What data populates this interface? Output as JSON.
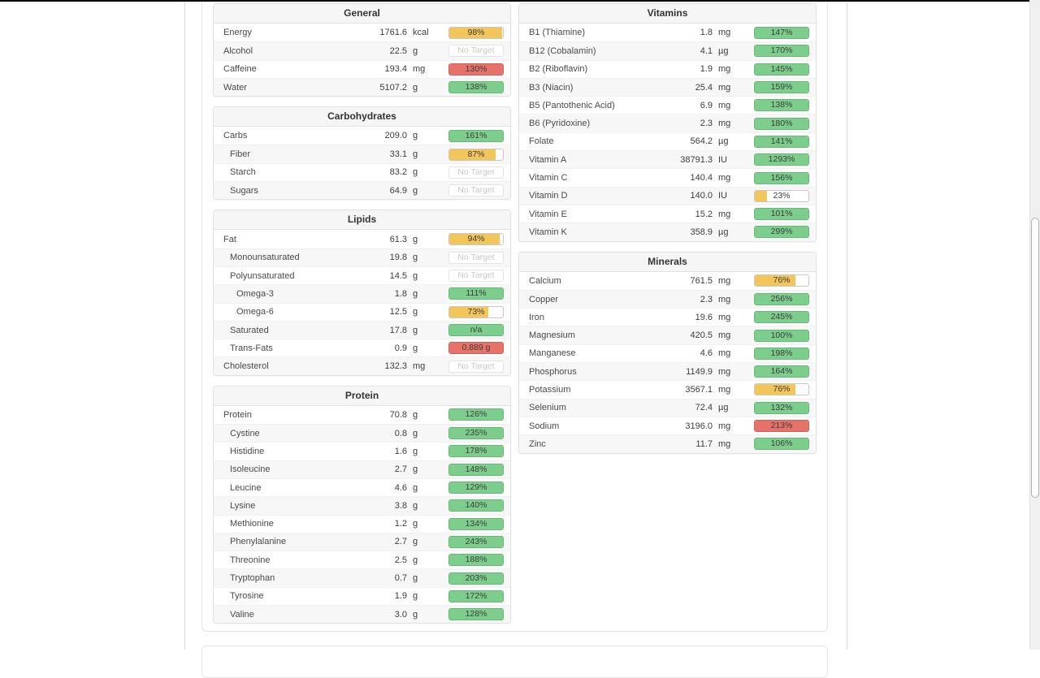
{
  "colors": {
    "green": "#7dcd8c",
    "yellow": "#f3c65b",
    "red": "#e57369",
    "no_target_text": "#c9c9c9"
  },
  "no_target_label": "No Target",
  "sections": [
    {
      "title": "General",
      "column": "left",
      "rows": [
        {
          "name": "Energy",
          "value": "1761.6",
          "unit": "kcal",
          "indent": 0,
          "bar": {
            "type": "yellow",
            "pct": 98,
            "label": "98%"
          }
        },
        {
          "name": "Alcohol",
          "value": "22.5",
          "unit": "g",
          "indent": 0,
          "bar": {
            "type": "none",
            "pct": 0,
            "label": "No Target"
          }
        },
        {
          "name": "Caffeine",
          "value": "193.4",
          "unit": "mg",
          "indent": 0,
          "bar": {
            "type": "red",
            "pct": 100,
            "label": "130%"
          }
        },
        {
          "name": "Water",
          "value": "5107.2",
          "unit": "g",
          "indent": 0,
          "bar": {
            "type": "green",
            "pct": 100,
            "label": "138%"
          }
        }
      ]
    },
    {
      "title": "Carbohydrates",
      "column": "left",
      "rows": [
        {
          "name": "Carbs",
          "value": "209.0",
          "unit": "g",
          "indent": 0,
          "bar": {
            "type": "green",
            "pct": 100,
            "label": "161%"
          }
        },
        {
          "name": "Fiber",
          "value": "33.1",
          "unit": "g",
          "indent": 1,
          "bar": {
            "type": "yellow",
            "pct": 87,
            "label": "87%"
          }
        },
        {
          "name": "Starch",
          "value": "83.2",
          "unit": "g",
          "indent": 1,
          "bar": {
            "type": "none",
            "pct": 0,
            "label": "No Target"
          }
        },
        {
          "name": "Sugars",
          "value": "64.9",
          "unit": "g",
          "indent": 1,
          "bar": {
            "type": "none",
            "pct": 0,
            "label": "No Target"
          }
        }
      ]
    },
    {
      "title": "Lipids",
      "column": "left",
      "rows": [
        {
          "name": "Fat",
          "value": "61.3",
          "unit": "g",
          "indent": 0,
          "bar": {
            "type": "yellow",
            "pct": 94,
            "label": "94%"
          }
        },
        {
          "name": "Monounsaturated",
          "value": "19.8",
          "unit": "g",
          "indent": 1,
          "bar": {
            "type": "none",
            "pct": 0,
            "label": "No Target"
          }
        },
        {
          "name": "Polyunsaturated",
          "value": "14.5",
          "unit": "g",
          "indent": 1,
          "bar": {
            "type": "none",
            "pct": 0,
            "label": "No Target"
          }
        },
        {
          "name": "Omega-3",
          "value": "1.8",
          "unit": "g",
          "indent": 2,
          "bar": {
            "type": "green",
            "pct": 100,
            "label": "111%"
          }
        },
        {
          "name": "Omega-6",
          "value": "12.5",
          "unit": "g",
          "indent": 2,
          "bar": {
            "type": "yellow",
            "pct": 73,
            "label": "73%"
          }
        },
        {
          "name": "Saturated",
          "value": "17.8",
          "unit": "g",
          "indent": 1,
          "bar": {
            "type": "green",
            "pct": 100,
            "label": "n/a"
          }
        },
        {
          "name": "Trans-Fats",
          "value": "0.9",
          "unit": "g",
          "indent": 1,
          "bar": {
            "type": "red",
            "pct": 100,
            "label": "0.889 g"
          }
        },
        {
          "name": "Cholesterol",
          "value": "132.3",
          "unit": "mg",
          "indent": 0,
          "bar": {
            "type": "none",
            "pct": 0,
            "label": "No Target"
          }
        }
      ]
    },
    {
      "title": "Protein",
      "column": "left",
      "rows": [
        {
          "name": "Protein",
          "value": "70.8",
          "unit": "g",
          "indent": 0,
          "bar": {
            "type": "green",
            "pct": 100,
            "label": "126%"
          }
        },
        {
          "name": "Cystine",
          "value": "0.8",
          "unit": "g",
          "indent": 1,
          "bar": {
            "type": "green",
            "pct": 100,
            "label": "235%"
          }
        },
        {
          "name": "Histidine",
          "value": "1.6",
          "unit": "g",
          "indent": 1,
          "bar": {
            "type": "green",
            "pct": 100,
            "label": "178%"
          }
        },
        {
          "name": "Isoleucine",
          "value": "2.7",
          "unit": "g",
          "indent": 1,
          "bar": {
            "type": "green",
            "pct": 100,
            "label": "148%"
          }
        },
        {
          "name": "Leucine",
          "value": "4.6",
          "unit": "g",
          "indent": 1,
          "bar": {
            "type": "green",
            "pct": 100,
            "label": "129%"
          }
        },
        {
          "name": "Lysine",
          "value": "3.8",
          "unit": "g",
          "indent": 1,
          "bar": {
            "type": "green",
            "pct": 100,
            "label": "140%"
          }
        },
        {
          "name": "Methionine",
          "value": "1.2",
          "unit": "g",
          "indent": 1,
          "bar": {
            "type": "green",
            "pct": 100,
            "label": "134%"
          }
        },
        {
          "name": "Phenylalanine",
          "value": "2.7",
          "unit": "g",
          "indent": 1,
          "bar": {
            "type": "green",
            "pct": 100,
            "label": "243%"
          }
        },
        {
          "name": "Threonine",
          "value": "2.5",
          "unit": "g",
          "indent": 1,
          "bar": {
            "type": "green",
            "pct": 100,
            "label": "188%"
          }
        },
        {
          "name": "Tryptophan",
          "value": "0.7",
          "unit": "g",
          "indent": 1,
          "bar": {
            "type": "green",
            "pct": 100,
            "label": "203%"
          }
        },
        {
          "name": "Tyrosine",
          "value": "1.9",
          "unit": "g",
          "indent": 1,
          "bar": {
            "type": "green",
            "pct": 100,
            "label": "172%"
          }
        },
        {
          "name": "Valine",
          "value": "3.0",
          "unit": "g",
          "indent": 1,
          "bar": {
            "type": "green",
            "pct": 100,
            "label": "128%"
          }
        }
      ]
    },
    {
      "title": "Vitamins",
      "column": "right",
      "rows": [
        {
          "name": "B1 (Thiamine)",
          "value": "1.8",
          "unit": "mg",
          "indent": 0,
          "bar": {
            "type": "green",
            "pct": 100,
            "label": "147%"
          }
        },
        {
          "name": "B12 (Cobalamin)",
          "value": "4.1",
          "unit": "µg",
          "indent": 0,
          "bar": {
            "type": "green",
            "pct": 100,
            "label": "170%"
          }
        },
        {
          "name": "B2 (Riboflavin)",
          "value": "1.9",
          "unit": "mg",
          "indent": 0,
          "bar": {
            "type": "green",
            "pct": 100,
            "label": "145%"
          }
        },
        {
          "name": "B3 (Niacin)",
          "value": "25.4",
          "unit": "mg",
          "indent": 0,
          "bar": {
            "type": "green",
            "pct": 100,
            "label": "159%"
          }
        },
        {
          "name": "B5 (Pantothenic Acid)",
          "value": "6.9",
          "unit": "mg",
          "indent": 0,
          "bar": {
            "type": "green",
            "pct": 100,
            "label": "138%"
          }
        },
        {
          "name": "B6 (Pyridoxine)",
          "value": "2.3",
          "unit": "mg",
          "indent": 0,
          "bar": {
            "type": "green",
            "pct": 100,
            "label": "180%"
          }
        },
        {
          "name": "Folate",
          "value": "564.2",
          "unit": "µg",
          "indent": 0,
          "bar": {
            "type": "green",
            "pct": 100,
            "label": "141%"
          }
        },
        {
          "name": "Vitamin A",
          "value": "38791.3",
          "unit": "IU",
          "indent": 0,
          "bar": {
            "type": "green",
            "pct": 100,
            "label": "1293%"
          }
        },
        {
          "name": "Vitamin C",
          "value": "140.4",
          "unit": "mg",
          "indent": 0,
          "bar": {
            "type": "green",
            "pct": 100,
            "label": "156%"
          }
        },
        {
          "name": "Vitamin D",
          "value": "140.0",
          "unit": "IU",
          "indent": 0,
          "bar": {
            "type": "yellow",
            "pct": 23,
            "label": "23%"
          }
        },
        {
          "name": "Vitamin E",
          "value": "15.2",
          "unit": "mg",
          "indent": 0,
          "bar": {
            "type": "green",
            "pct": 100,
            "label": "101%"
          }
        },
        {
          "name": "Vitamin K",
          "value": "358.9",
          "unit": "µg",
          "indent": 0,
          "bar": {
            "type": "green",
            "pct": 100,
            "label": "299%"
          }
        }
      ]
    },
    {
      "title": "Minerals",
      "column": "right",
      "rows": [
        {
          "name": "Calcium",
          "value": "761.5",
          "unit": "mg",
          "indent": 0,
          "bar": {
            "type": "yellow",
            "pct": 76,
            "label": "76%"
          }
        },
        {
          "name": "Copper",
          "value": "2.3",
          "unit": "mg",
          "indent": 0,
          "bar": {
            "type": "green",
            "pct": 100,
            "label": "256%"
          }
        },
        {
          "name": "Iron",
          "value": "19.6",
          "unit": "mg",
          "indent": 0,
          "bar": {
            "type": "green",
            "pct": 100,
            "label": "245%"
          }
        },
        {
          "name": "Magnesium",
          "value": "420.5",
          "unit": "mg",
          "indent": 0,
          "bar": {
            "type": "green",
            "pct": 100,
            "label": "100%"
          }
        },
        {
          "name": "Manganese",
          "value": "4.6",
          "unit": "mg",
          "indent": 0,
          "bar": {
            "type": "green",
            "pct": 100,
            "label": "198%"
          }
        },
        {
          "name": "Phosphorus",
          "value": "1149.9",
          "unit": "mg",
          "indent": 0,
          "bar": {
            "type": "green",
            "pct": 100,
            "label": "164%"
          }
        },
        {
          "name": "Potassium",
          "value": "3567.1",
          "unit": "mg",
          "indent": 0,
          "bar": {
            "type": "yellow",
            "pct": 76,
            "label": "76%"
          }
        },
        {
          "name": "Selenium",
          "value": "72.4",
          "unit": "µg",
          "indent": 0,
          "bar": {
            "type": "green",
            "pct": 100,
            "label": "132%"
          }
        },
        {
          "name": "Sodium",
          "value": "3196.0",
          "unit": "mg",
          "indent": 0,
          "bar": {
            "type": "red",
            "pct": 100,
            "label": "213%"
          }
        },
        {
          "name": "Zinc",
          "value": "11.7",
          "unit": "mg",
          "indent": 0,
          "bar": {
            "type": "green",
            "pct": 100,
            "label": "106%"
          }
        }
      ]
    }
  ]
}
